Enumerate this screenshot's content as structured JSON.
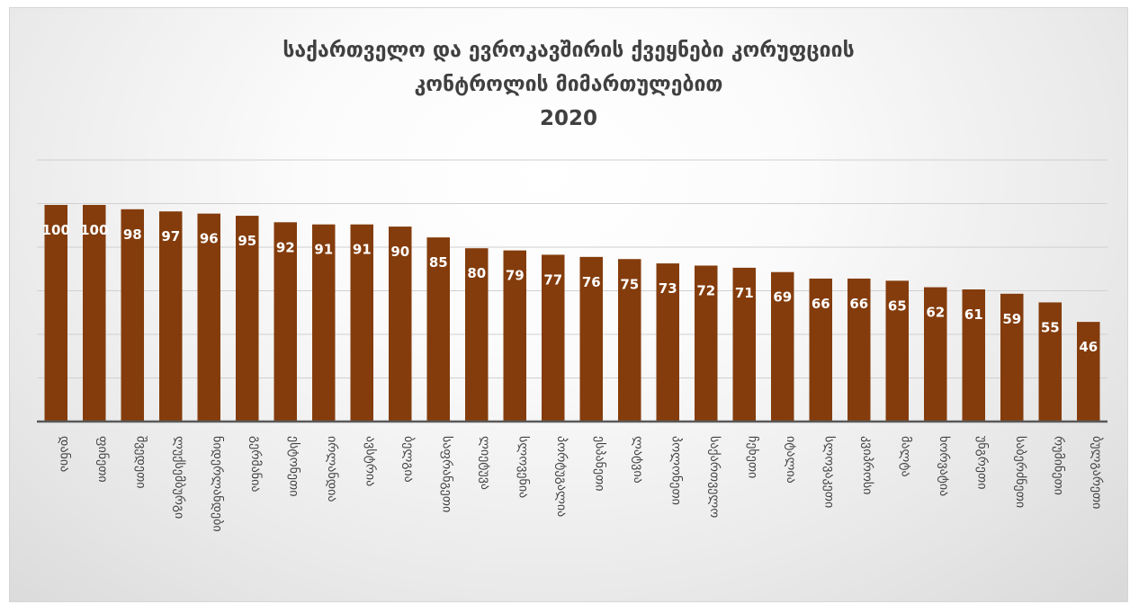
{
  "chart_data": {
    "type": "bar",
    "title_lines": [
      "საქართველო და ევროკავშირის ქვეყნები კორუფციის",
      "კონტროლის მიმართულებით",
      "2020"
    ],
    "categories": [
      "დანია",
      "ფინეთი",
      "შვედეთი",
      "ლუქსემბურგი",
      "ნიდერლანდები",
      "გერმანია",
      "ესტონეთი",
      "ირლანდია",
      "ავსტრია",
      "ბელგია",
      "საფრანგეთი",
      "ლიეტუვა",
      "სლოვენია",
      "პორტუგალია",
      "ესპანეთი",
      "ლატვია",
      "პოლონეთი",
      "საქართველო",
      "ჩეხეთი",
      "იტალია",
      "სლოვაკეთი",
      "კვიპროსი",
      "მალტა",
      "ხორვატია",
      "უნგრეთი",
      "საბერძნეთი",
      "რუმინეთი",
      "ბულგარეთი"
    ],
    "values": [
      100,
      100,
      98,
      97,
      96,
      95,
      92,
      91,
      91,
      90,
      85,
      80,
      79,
      77,
      76,
      75,
      73,
      72,
      71,
      69,
      66,
      66,
      65,
      62,
      61,
      59,
      55,
      46
    ],
    "ylim": [
      0,
      100
    ],
    "gridlines": true,
    "legend": "none",
    "data_labels": true,
    "bar_color": "#843c0c",
    "label_color": "#ffffff"
  }
}
